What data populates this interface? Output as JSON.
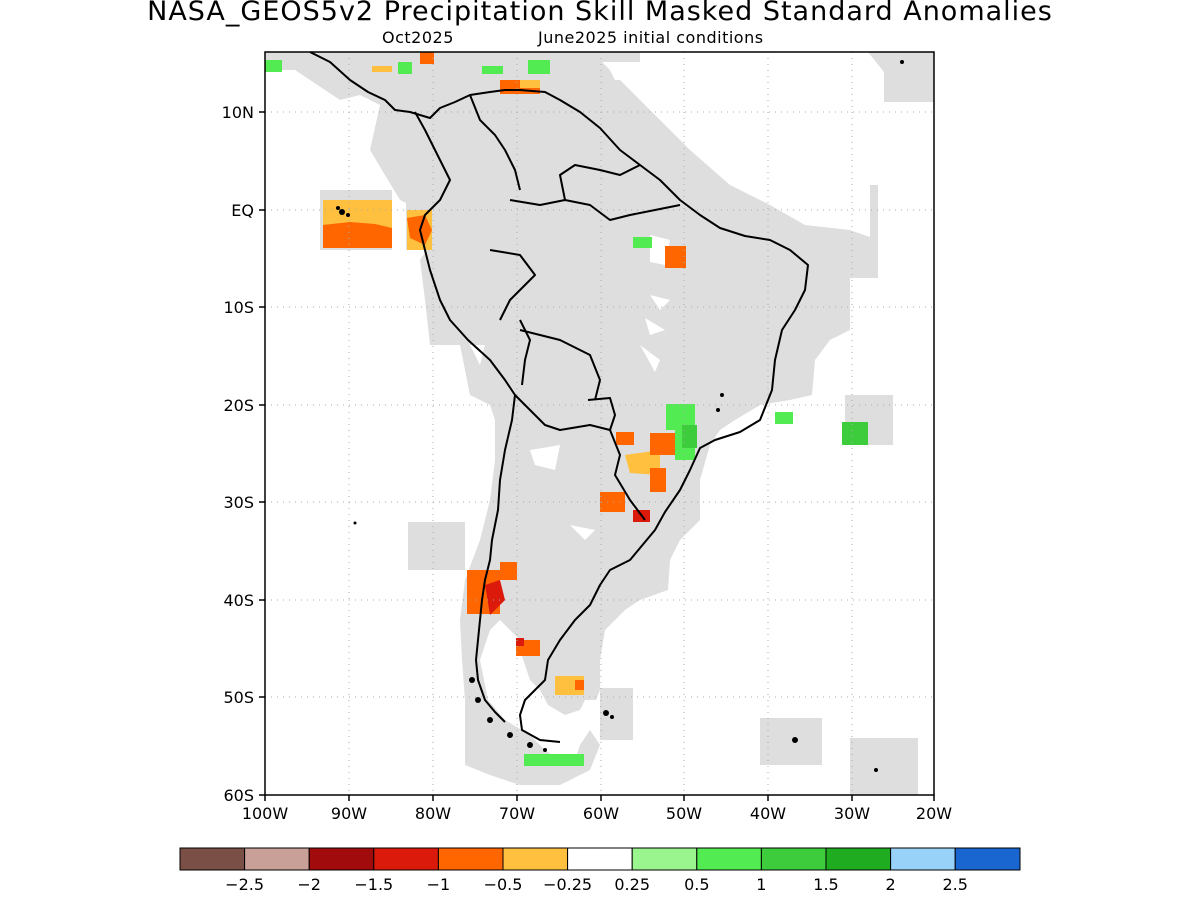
{
  "header": {
    "title": "NASA_GEOS5v2 Precipitation Skill Masked Standard Anomalies",
    "month": "Oct2025",
    "init": "June2025 initial conditions"
  },
  "map": {
    "lon_labels": [
      "100W",
      "90W",
      "80W",
      "70W",
      "60W",
      "50W",
      "40W",
      "30W",
      "20W"
    ],
    "lat_labels": [
      "10N",
      "EQ",
      "10S",
      "20S",
      "30S",
      "40S",
      "50S",
      "60S"
    ],
    "lon_range": [
      -100,
      -20
    ],
    "lat_range": [
      -60,
      15
    ]
  },
  "colorbar": {
    "colors": [
      "#7a4f45",
      "#c9a097",
      "#a10b0b",
      "#dc1a0c",
      "#ff6600",
      "#ffbf3f",
      "#ffffff",
      "#9af58f",
      "#52ec52",
      "#3ccc3c",
      "#20ac20",
      "#98d2f8",
      "#1a66d0"
    ],
    "labels": [
      "−2.5",
      "−2",
      "−1.5",
      "−1",
      "−0.5",
      "−0.25",
      "0.25",
      "0.5",
      "1",
      "1.5",
      "2",
      "2.5"
    ]
  },
  "colors": {
    "masked": "#dedede",
    "grid": "#aaaaaa"
  }
}
